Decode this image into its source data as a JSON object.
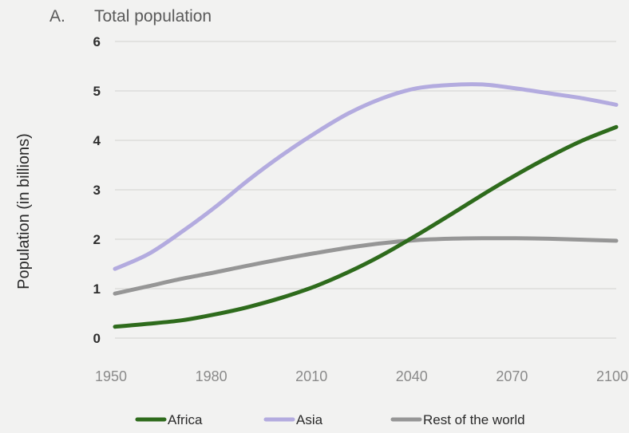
{
  "panel_letter": "A.",
  "chart_data": {
    "type": "line",
    "title": "Total population",
    "xlabel": "",
    "ylabel": "Population (in billions)",
    "xlim": [
      1950,
      2100
    ],
    "ylim": [
      0,
      6
    ],
    "grid": true,
    "legend_position": "bottom",
    "x_ticks": [
      "1950",
      "1980",
      "2010",
      "2040",
      "2070",
      "2100"
    ],
    "y_ticks": [
      "0",
      "1",
      "2",
      "3",
      "4",
      "5",
      "6"
    ],
    "x": [
      1950,
      1960,
      1970,
      1980,
      1990,
      2000,
      2010,
      2020,
      2030,
      2040,
      2050,
      2060,
      2070,
      2080,
      2090,
      2100
    ],
    "series": [
      {
        "name": "Africa",
        "color": "#2e6b1c",
        "values": [
          0.23,
          0.29,
          0.36,
          0.48,
          0.63,
          0.82,
          1.05,
          1.34,
          1.68,
          2.07,
          2.48,
          2.9,
          3.3,
          3.67,
          4.0,
          4.27
        ]
      },
      {
        "name": "Asia",
        "color": "#b3abdf",
        "values": [
          1.4,
          1.7,
          2.15,
          2.65,
          3.2,
          3.7,
          4.15,
          4.55,
          4.85,
          5.05,
          5.12,
          5.13,
          5.05,
          4.95,
          4.85,
          4.72
        ]
      },
      {
        "name": "Rest of the world",
        "color": "#969696",
        "values": [
          0.9,
          1.05,
          1.2,
          1.33,
          1.47,
          1.6,
          1.72,
          1.83,
          1.92,
          1.98,
          2.01,
          2.02,
          2.02,
          2.01,
          1.99,
          1.97
        ]
      }
    ]
  }
}
